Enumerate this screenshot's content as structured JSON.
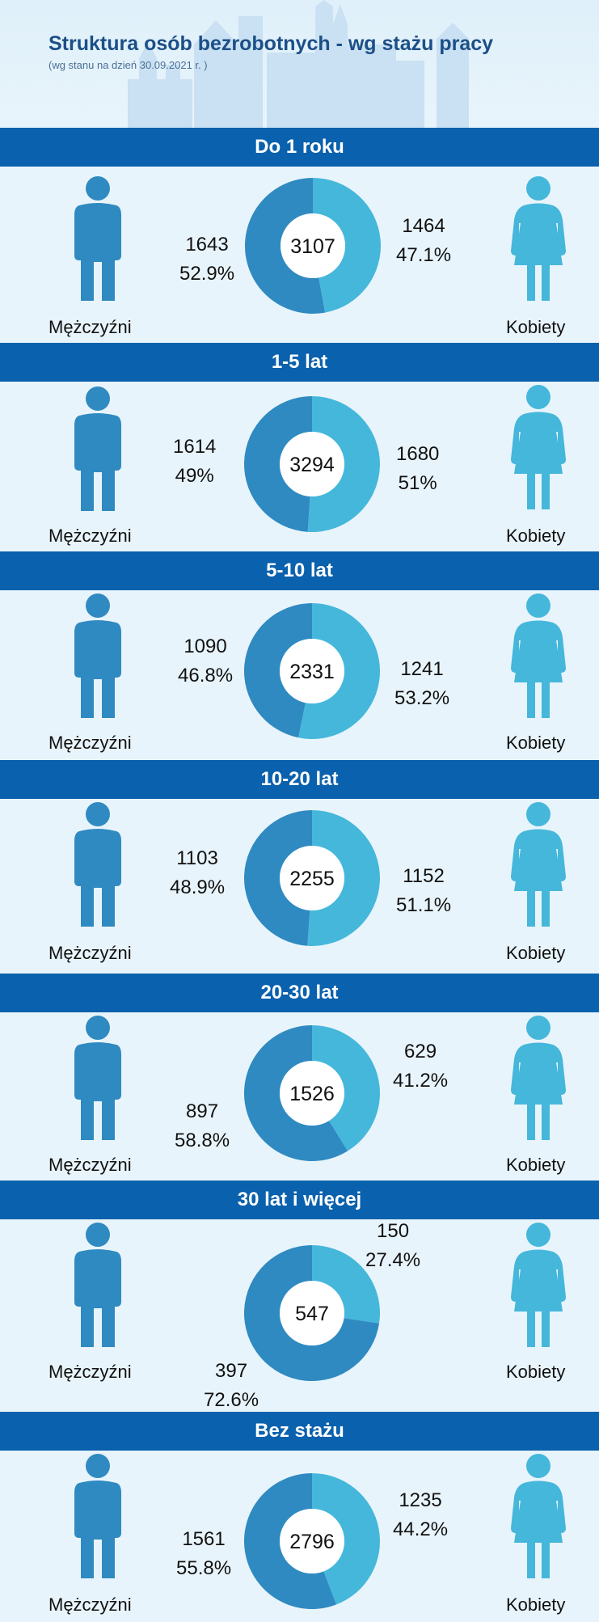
{
  "title": "Struktura osób bezrobotnych - wg stażu pracy",
  "subtitle": "(wg stanu na dzień 30.09.2021 r. )",
  "colors": {
    "band": "#0a61ad",
    "men": "#2f8ac1",
    "women": "#45b7db",
    "title": "#1c4f87"
  },
  "icons": {
    "men": "man-icon",
    "women": "woman-icon"
  },
  "labels": {
    "men": "Mężczyźni",
    "women": "Kobiety"
  },
  "chart_data": [
    {
      "type": "pie",
      "title": "Do 1 roku",
      "total": "3107",
      "men": {
        "value": 1643,
        "display": "1643",
        "percent": "52.9%"
      },
      "women": {
        "value": 1464,
        "display": "1464",
        "percent": "47.1%"
      }
    },
    {
      "type": "pie",
      "title": "1-5 lat",
      "total": "3294",
      "men": {
        "value": 1614,
        "display": "1614",
        "percent": "49%"
      },
      "women": {
        "value": 1680,
        "display": "1680",
        "percent": "51%"
      }
    },
    {
      "type": "pie",
      "title": "5-10 lat",
      "total": "2331",
      "men": {
        "value": 1090,
        "display": "1090",
        "percent": "46.8%"
      },
      "women": {
        "value": 1241,
        "display": "1241",
        "percent": "53.2%"
      }
    },
    {
      "type": "pie",
      "title": "10-20 lat",
      "total": "2255",
      "men": {
        "value": 1103,
        "display": "1103",
        "percent": "48.9%"
      },
      "women": {
        "value": 1152,
        "display": "1152",
        "percent": "51.1%"
      }
    },
    {
      "type": "pie",
      "title": "20-30 lat",
      "total": "1526",
      "men": {
        "value": 897,
        "display": "897",
        "percent": "58.8%"
      },
      "women": {
        "value": 629,
        "display": "629",
        "percent": "41.2%"
      }
    },
    {
      "type": "pie",
      "title": "30 lat i więcej",
      "total": "547",
      "men": {
        "value": 397,
        "display": "397",
        "percent": "72.6%"
      },
      "women": {
        "value": 150,
        "display": "150",
        "percent": "27.4%"
      }
    },
    {
      "type": "pie",
      "title": "Bez stażu",
      "total": "2796",
      "men": {
        "value": 1561,
        "display": "1561",
        "percent": "55.8%"
      },
      "women": {
        "value": 1235,
        "display": "1235",
        "percent": "44.2%"
      }
    }
  ]
}
